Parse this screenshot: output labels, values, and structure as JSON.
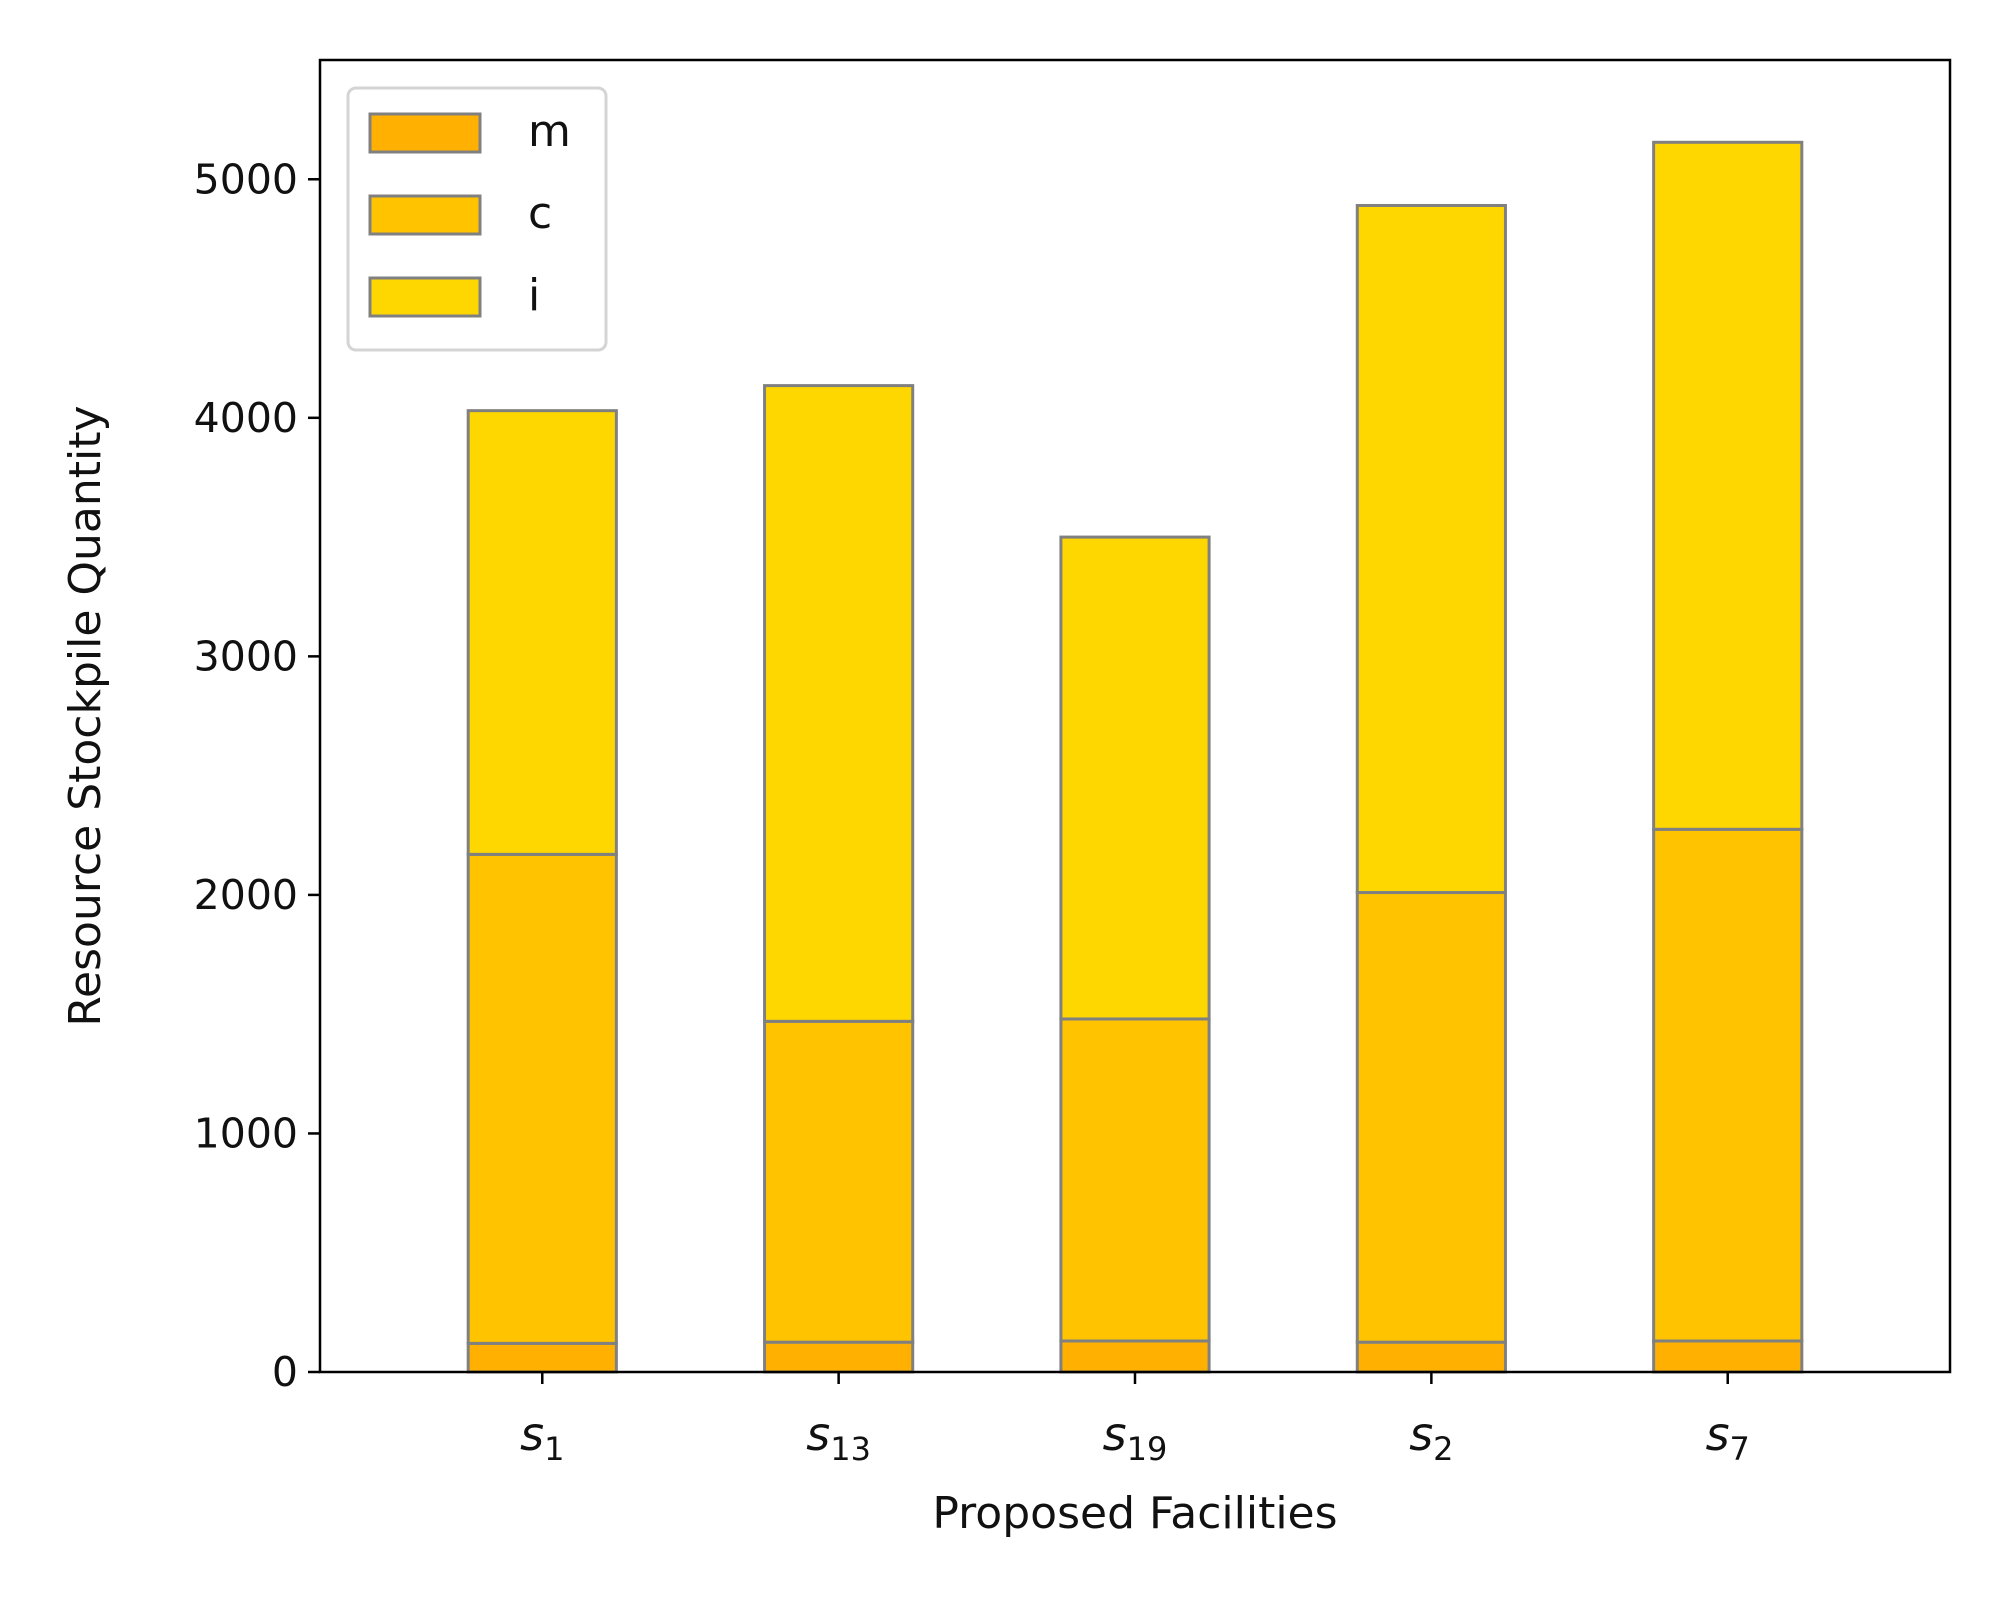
{
  "chart_data": {
    "type": "bar",
    "stacked": true,
    "categories": [
      {
        "base": "s",
        "sub": "1"
      },
      {
        "base": "s",
        "sub": "13"
      },
      {
        "base": "s",
        "sub": "19"
      },
      {
        "base": "s",
        "sub": "2"
      },
      {
        "base": "s",
        "sub": "7"
      }
    ],
    "series": [
      {
        "name": "m",
        "color": "#FFB000",
        "values": [
          120,
          125,
          130,
          125,
          130
        ]
      },
      {
        "name": "c",
        "color": "#FFC300",
        "values": [
          2050,
          1345,
          1350,
          1885,
          2145
        ]
      },
      {
        "name": "i",
        "color": "#FFD700",
        "values": [
          1860,
          2665,
          2020,
          2880,
          2880
        ]
      }
    ],
    "edge_color": "#808080",
    "xlabel": "Proposed Facilities",
    "ylabel": "Resource Stockpile Quantity",
    "ylim": [
      0,
      5500
    ],
    "yticks": [
      0,
      1000,
      2000,
      3000,
      4000,
      5000
    ],
    "legend_position": "upper-left",
    "grid": false
  }
}
